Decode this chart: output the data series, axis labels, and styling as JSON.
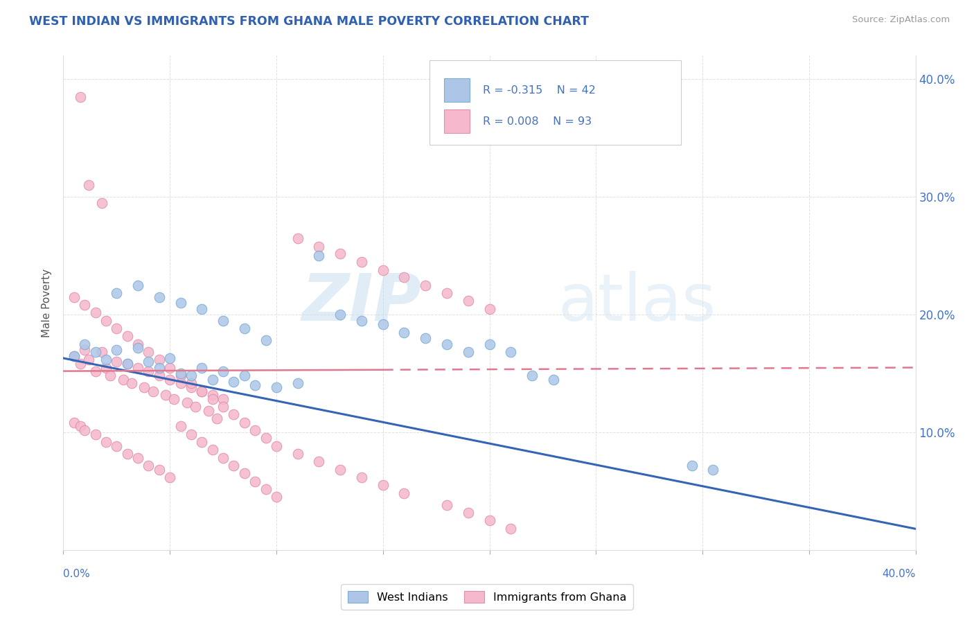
{
  "title": "WEST INDIAN VS IMMIGRANTS FROM GHANA MALE POVERTY CORRELATION CHART",
  "source": "Source: ZipAtlas.com",
  "ylabel": "Male Poverty",
  "xmin": 0.0,
  "xmax": 0.4,
  "ymin": 0.0,
  "ymax": 0.42,
  "blue_color": "#adc6e8",
  "blue_edge": "#7aadd4",
  "pink_color": "#f5b8cc",
  "pink_edge": "#e090a8",
  "line_blue_color": "#3464b4",
  "line_pink_color": "#e07890",
  "title_color": "#3060b0",
  "axis_label_color": "#4472c4",
  "watermark_color": "#d8e8f5",
  "grid_color": "#cccccc",
  "wi_line_y0": 0.163,
  "wi_line_y1": 0.018,
  "gh_line_y0": 0.152,
  "gh_line_y1": 0.155,
  "gh_line_solid_end": 0.15,
  "wi_x": [
    0.005,
    0.01,
    0.015,
    0.02,
    0.025,
    0.03,
    0.035,
    0.04,
    0.045,
    0.05,
    0.055,
    0.06,
    0.065,
    0.07,
    0.075,
    0.08,
    0.085,
    0.09,
    0.1,
    0.11,
    0.12,
    0.13,
    0.14,
    0.15,
    0.16,
    0.17,
    0.18,
    0.19,
    0.2,
    0.21,
    0.22,
    0.23,
    0.295,
    0.305,
    0.025,
    0.035,
    0.045,
    0.055,
    0.065,
    0.075,
    0.085,
    0.095
  ],
  "wi_y": [
    0.165,
    0.175,
    0.168,
    0.162,
    0.17,
    0.158,
    0.172,
    0.16,
    0.155,
    0.163,
    0.15,
    0.148,
    0.155,
    0.145,
    0.152,
    0.143,
    0.148,
    0.14,
    0.138,
    0.142,
    0.25,
    0.2,
    0.195,
    0.192,
    0.185,
    0.18,
    0.175,
    0.168,
    0.175,
    0.168,
    0.148,
    0.145,
    0.072,
    0.068,
    0.218,
    0.225,
    0.215,
    0.21,
    0.205,
    0.195,
    0.188,
    0.178
  ],
  "gh_x": [
    0.005,
    0.008,
    0.01,
    0.012,
    0.015,
    0.018,
    0.02,
    0.022,
    0.025,
    0.028,
    0.03,
    0.032,
    0.035,
    0.038,
    0.04,
    0.042,
    0.045,
    0.048,
    0.05,
    0.052,
    0.055,
    0.058,
    0.06,
    0.062,
    0.065,
    0.068,
    0.07,
    0.072,
    0.075,
    0.005,
    0.008,
    0.01,
    0.015,
    0.02,
    0.025,
    0.03,
    0.035,
    0.04,
    0.045,
    0.05,
    0.055,
    0.06,
    0.065,
    0.07,
    0.075,
    0.08,
    0.085,
    0.09,
    0.095,
    0.1,
    0.005,
    0.01,
    0.015,
    0.02,
    0.025,
    0.03,
    0.035,
    0.04,
    0.045,
    0.05,
    0.055,
    0.06,
    0.065,
    0.07,
    0.075,
    0.08,
    0.085,
    0.09,
    0.095,
    0.1,
    0.11,
    0.12,
    0.13,
    0.14,
    0.15,
    0.16,
    0.18,
    0.19,
    0.2,
    0.21,
    0.11,
    0.12,
    0.13,
    0.14,
    0.15,
    0.16,
    0.17,
    0.18,
    0.19,
    0.2,
    0.008,
    0.012,
    0.018
  ],
  "gh_y": [
    0.165,
    0.158,
    0.17,
    0.162,
    0.152,
    0.168,
    0.155,
    0.148,
    0.16,
    0.145,
    0.158,
    0.142,
    0.155,
    0.138,
    0.152,
    0.135,
    0.148,
    0.132,
    0.145,
    0.128,
    0.142,
    0.125,
    0.138,
    0.122,
    0.135,
    0.118,
    0.132,
    0.112,
    0.128,
    0.108,
    0.105,
    0.102,
    0.098,
    0.092,
    0.088,
    0.082,
    0.078,
    0.072,
    0.068,
    0.062,
    0.105,
    0.098,
    0.092,
    0.085,
    0.078,
    0.072,
    0.065,
    0.058,
    0.052,
    0.045,
    0.215,
    0.208,
    0.202,
    0.195,
    0.188,
    0.182,
    0.175,
    0.168,
    0.162,
    0.155,
    0.148,
    0.142,
    0.135,
    0.128,
    0.122,
    0.115,
    0.108,
    0.102,
    0.095,
    0.088,
    0.082,
    0.075,
    0.068,
    0.062,
    0.055,
    0.048,
    0.038,
    0.032,
    0.025,
    0.018,
    0.265,
    0.258,
    0.252,
    0.245,
    0.238,
    0.232,
    0.225,
    0.218,
    0.212,
    0.205,
    0.385,
    0.31,
    0.295
  ]
}
